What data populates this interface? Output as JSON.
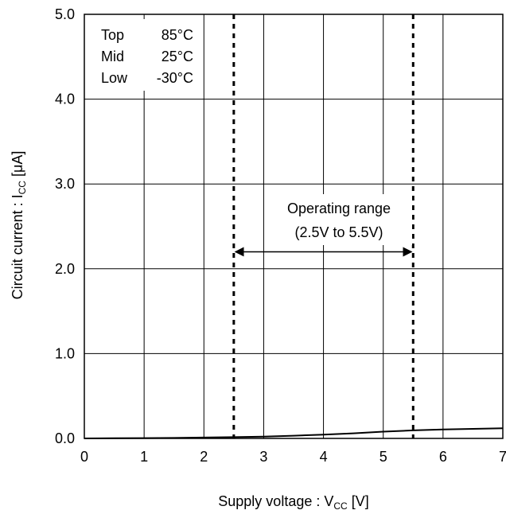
{
  "chart_data": {
    "type": "line",
    "xlabel": "Supply voltage : V",
    "xlabel_sub": "CC",
    "xlabel_unit": " [V]",
    "ylabel": "Circuit current : I",
    "ylabel_sub": "CC",
    "ylabel_unit": " [μA]",
    "xlim": [
      0,
      7
    ],
    "ylim": [
      0,
      5.0
    ],
    "xticks": [
      "0",
      "1",
      "2",
      "3",
      "4",
      "5",
      "6",
      "7"
    ],
    "yticks": [
      "0.0",
      "1.0",
      "2.0",
      "3.0",
      "4.0",
      "5.0"
    ],
    "grid": true,
    "legend": {
      "position": "top-left",
      "entries": [
        {
          "name": "Top",
          "value": "85°C"
        },
        {
          "name": "Mid",
          "value": "25°C"
        },
        {
          "name": "Low",
          "value": "-30°C"
        }
      ]
    },
    "series": [
      {
        "x": [
          0,
          0.5,
          1,
          1.5,
          2,
          2.5,
          3,
          3.5,
          4,
          4.5,
          5,
          5.5,
          6,
          6.5,
          7
        ],
        "y": [
          0.0,
          0.002,
          0.004,
          0.006,
          0.01,
          0.015,
          0.022,
          0.032,
          0.045,
          0.06,
          0.08,
          0.095,
          0.105,
          0.113,
          0.12
        ]
      }
    ],
    "vlines": [
      2.5,
      5.5
    ],
    "annotation": {
      "line1": "Operating range",
      "line2": "(2.5V to 5.5V)",
      "arrow_from": 2.5,
      "arrow_to": 5.5,
      "arrow_y": 2.2
    }
  }
}
